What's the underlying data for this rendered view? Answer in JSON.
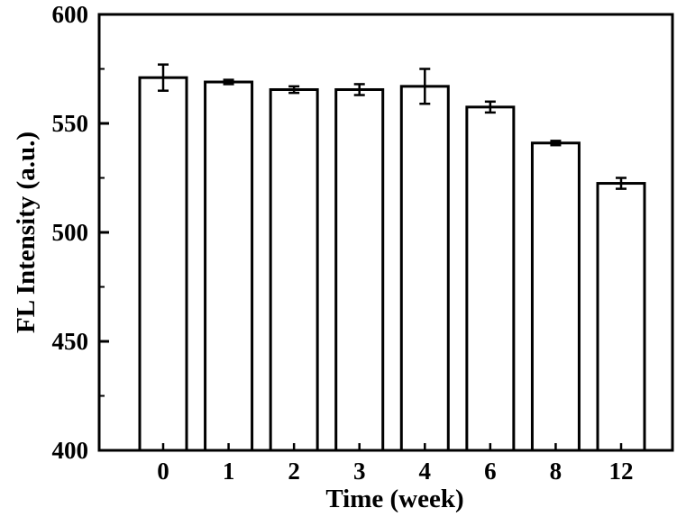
{
  "chart_data": {
    "type": "bar",
    "title": "",
    "xlabel": "Time (week)",
    "ylabel": "FL Intensity (a.u.)",
    "categories": [
      "0",
      "1",
      "2",
      "3",
      "4",
      "6",
      "8",
      "12"
    ],
    "values": [
      571,
      569,
      565.5,
      565.5,
      567,
      557.5,
      541,
      522.5
    ],
    "errors": [
      6,
      1,
      1.5,
      2.5,
      8,
      2.5,
      1,
      2.5
    ],
    "ylim": [
      400,
      600
    ],
    "yticks": [
      "400",
      "450",
      "500",
      "550",
      "600"
    ],
    "grid": false,
    "legend": "none",
    "bar_fill": "#ffffff",
    "bar_stroke": "#000000"
  }
}
